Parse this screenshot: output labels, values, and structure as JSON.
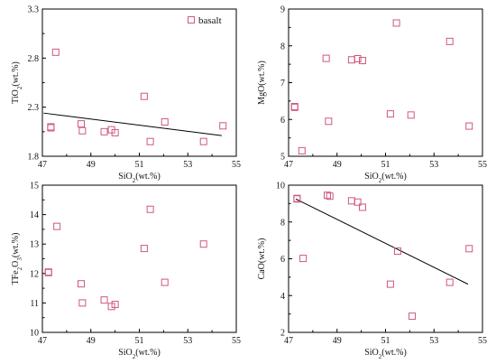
{
  "figure": {
    "colors": {
      "marker": "#d0587a",
      "axis": "#000000",
      "trend": "#000000"
    }
  },
  "chart_data": [
    {
      "id": "tio2",
      "type": "scatter",
      "title": "",
      "xlabel": "SiO₂(wt.%)",
      "ylabel": "TiO₂(wt.%)",
      "xlim": [
        47,
        55
      ],
      "ylim": [
        1.8,
        3.3
      ],
      "xticks": [
        "47",
        "49",
        "51",
        "53",
        "55"
      ],
      "yticks": [
        "1.8",
        "2.3",
        "2.8",
        "3.3"
      ],
      "legend": {
        "label": "basalt",
        "position": "top-right"
      },
      "series": [
        {
          "name": "basalt",
          "x": [
            47.35,
            47.35,
            47.55,
            48.6,
            48.65,
            49.55,
            49.85,
            50.0,
            51.2,
            51.45,
            52.05,
            53.65,
            54.45
          ],
          "y": [
            2.1,
            2.09,
            2.86,
            2.13,
            2.06,
            2.05,
            2.07,
            2.04,
            2.41,
            1.95,
            2.15,
            1.95,
            2.11
          ]
        }
      ],
      "trendline": {
        "x": [
          47.05,
          54.4
        ],
        "y": [
          2.24,
          2.01
        ]
      }
    },
    {
      "id": "mgo",
      "type": "scatter",
      "title": "",
      "xlabel": "SiO₂(wt.%)",
      "ylabel": "MgO(wt.%)",
      "xlim": [
        47,
        55
      ],
      "ylim": [
        5,
        9
      ],
      "xticks": [
        "47",
        "49",
        "51",
        "53",
        "55"
      ],
      "yticks": [
        "5",
        "6",
        "7",
        "8",
        "9"
      ],
      "series": [
        {
          "name": "basalt",
          "x": [
            47.25,
            47.25,
            47.55,
            48.55,
            48.65,
            49.6,
            49.85,
            50.05,
            51.2,
            51.45,
            52.05,
            53.65,
            54.45
          ],
          "y": [
            6.35,
            6.33,
            5.15,
            7.66,
            5.95,
            7.62,
            7.65,
            7.6,
            6.15,
            8.62,
            6.12,
            8.12,
            5.82
          ]
        }
      ]
    },
    {
      "id": "tfe2o3",
      "type": "scatter",
      "title": "",
      "xlabel": "SiO₂(wt.%)",
      "ylabel": "TFe₂O₃(wt.%)",
      "xlim": [
        47,
        55
      ],
      "ylim": [
        10,
        15
      ],
      "xticks": [
        "47",
        "49",
        "51",
        "53",
        "55"
      ],
      "yticks": [
        "10",
        "11",
        "12",
        "13",
        "14",
        "15"
      ],
      "series": [
        {
          "name": "basalt",
          "x": [
            47.25,
            47.25,
            47.6,
            48.6,
            48.65,
            49.55,
            49.85,
            50.0,
            51.2,
            51.45,
            52.05,
            53.65
          ],
          "y": [
            12.05,
            12.03,
            13.6,
            11.65,
            11.0,
            11.1,
            10.88,
            10.95,
            12.85,
            14.18,
            11.7,
            13.0
          ]
        }
      ]
    },
    {
      "id": "cao",
      "type": "scatter",
      "title": "",
      "xlabel": "SiO₂(wt.%)",
      "ylabel": "CaO(wt.%)",
      "xlim": [
        47,
        55
      ],
      "ylim": [
        2,
        10
      ],
      "xticks": [
        "47",
        "49",
        "51",
        "53",
        "55"
      ],
      "yticks": [
        "2",
        "4",
        "6",
        "8",
        "10"
      ],
      "series": [
        {
          "name": "basalt",
          "x": [
            47.35,
            47.35,
            47.6,
            48.6,
            48.7,
            49.6,
            49.85,
            50.05,
            51.2,
            51.5,
            52.1,
            53.65,
            54.45
          ],
          "y": [
            9.28,
            9.25,
            6.02,
            9.45,
            9.4,
            9.15,
            9.08,
            8.8,
            4.62,
            6.42,
            2.88,
            4.72,
            6.55
          ]
        }
      ],
      "trendline": {
        "x": [
          47.3,
          54.4
        ],
        "y": [
          9.25,
          4.62
        ]
      }
    }
  ]
}
